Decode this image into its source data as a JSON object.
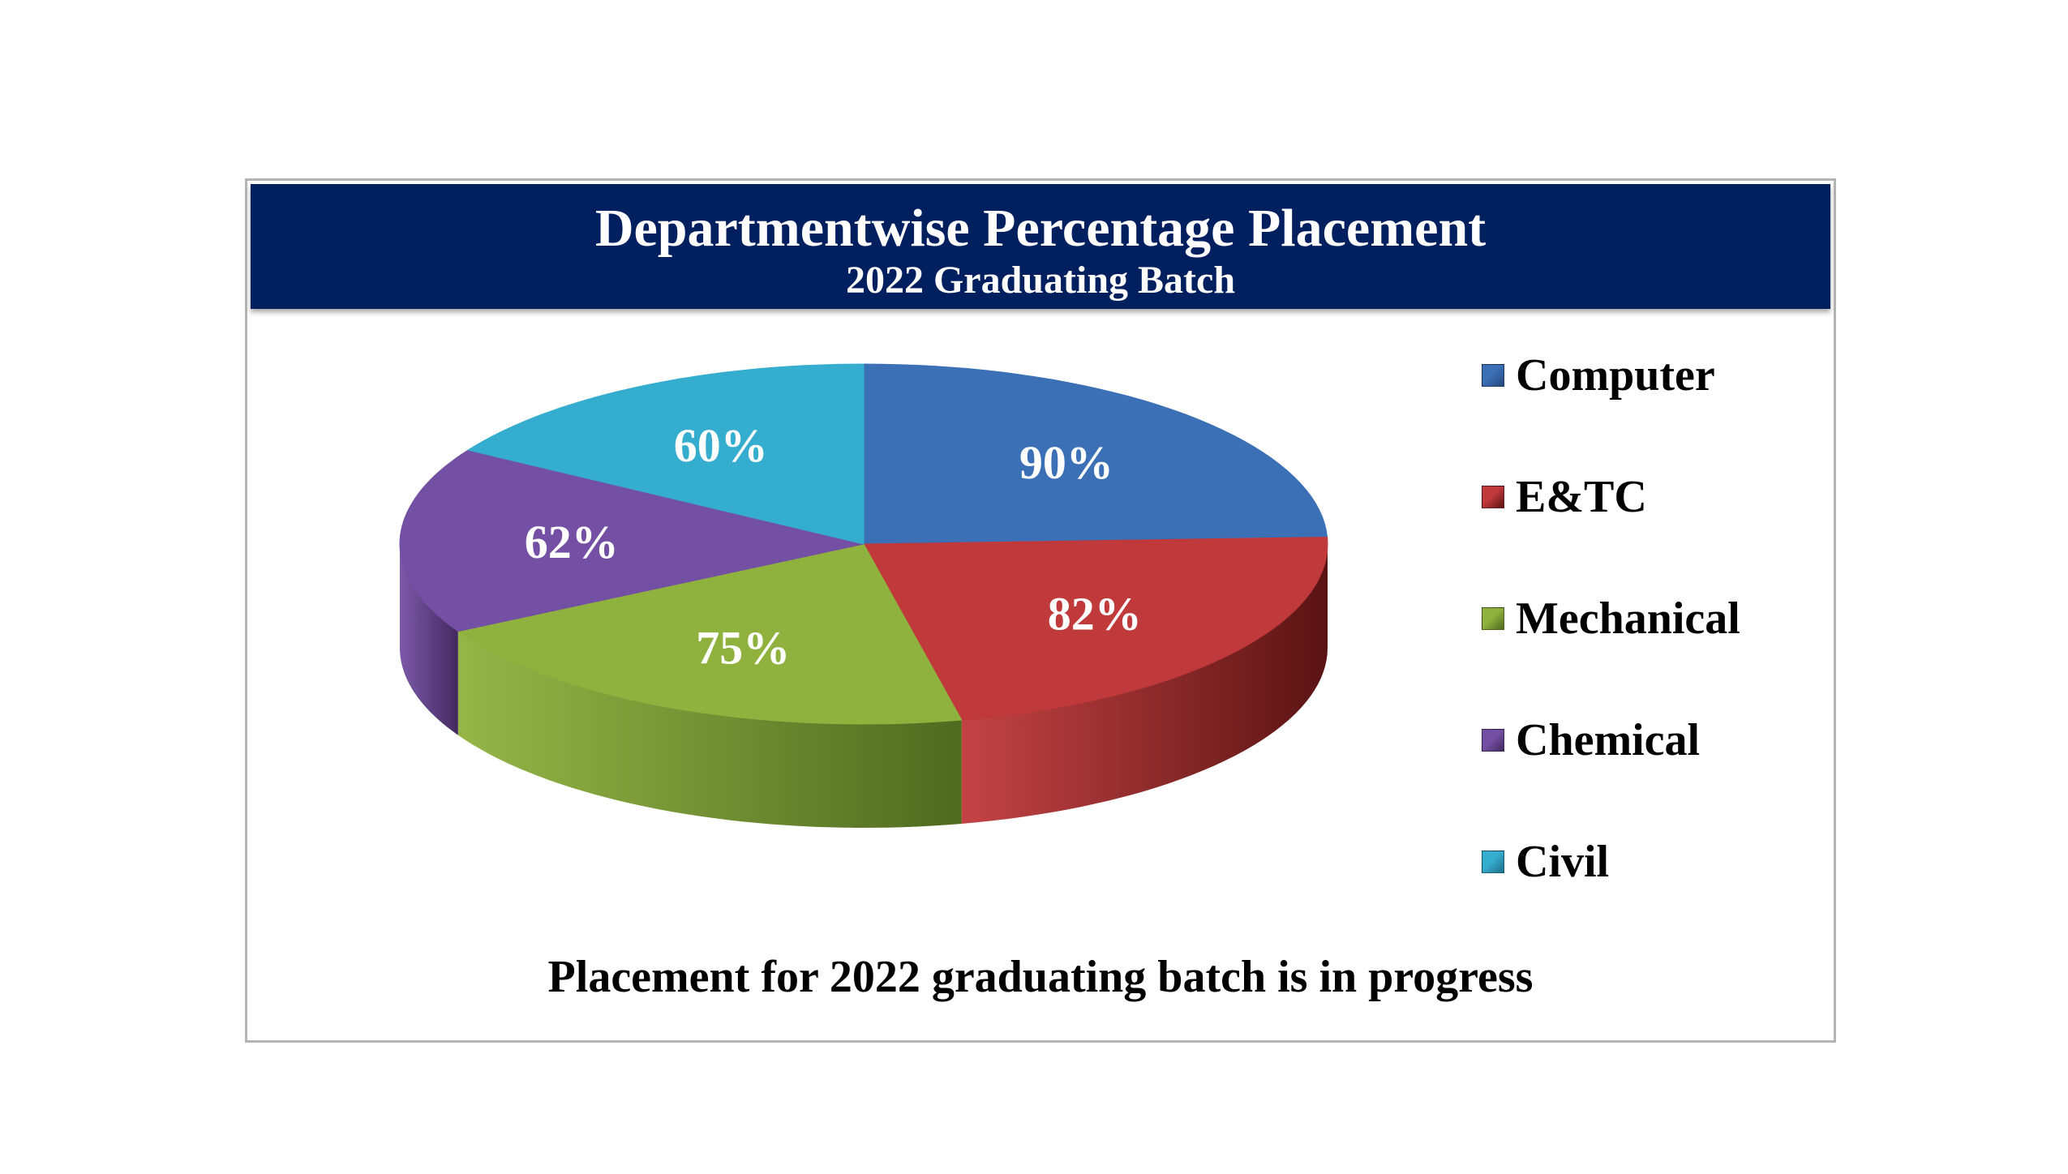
{
  "chart_data": {
    "type": "pie",
    "title": "Departmentwise Percentage Placement",
    "subtitle": "2022 Graduating Batch",
    "slices": [
      {
        "label": "Computer",
        "value": 90,
        "display": "90%",
        "color": "#3b6fb6",
        "side": "#24477a"
      },
      {
        "label": "E&TC",
        "value": 82,
        "display": "82%",
        "color": "#c0393b",
        "side": "#5a1313"
      },
      {
        "label": "Mechanical",
        "value": 75,
        "display": "75%",
        "color": "#8fb23e",
        "side": "#4f6a1f"
      },
      {
        "label": "Chemical",
        "value": 62,
        "display": "62%",
        "color": "#7450a4",
        "side": "#43295f"
      },
      {
        "label": "Civil",
        "value": 60,
        "display": "60%",
        "color": "#35adcf",
        "side": "#1d6f87"
      }
    ],
    "legend_position": "right"
  },
  "footer": "Placement for 2022 graduating batch is in progress"
}
